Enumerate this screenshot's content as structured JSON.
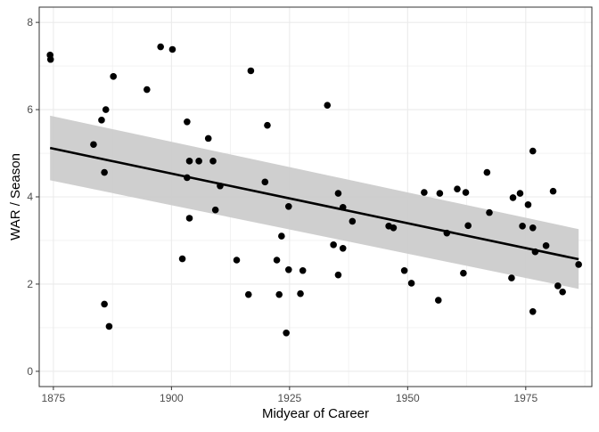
{
  "chart_data": {
    "type": "scatter",
    "title": "",
    "xlabel": "Midyear of Career",
    "ylabel": "WAR / Season",
    "xlim": [
      1872,
      1989
    ],
    "ylim": [
      -0.35,
      8.35
    ],
    "x_ticks": [
      1875,
      1900,
      1925,
      1950,
      1975
    ],
    "y_ticks": [
      0,
      2,
      4,
      6,
      8
    ],
    "grid": true,
    "colors": {
      "points": "#000000",
      "band": "#cccccc",
      "line": "#000000",
      "panel_border": "#333333",
      "grid": "#ebebeb"
    },
    "points": [
      {
        "x": 1874.3,
        "y": 7.25
      },
      {
        "x": 1874.4,
        "y": 7.15
      },
      {
        "x": 1883.5,
        "y": 5.2
      },
      {
        "x": 1885.2,
        "y": 5.76
      },
      {
        "x": 1886.1,
        "y": 6.0
      },
      {
        "x": 1885.8,
        "y": 4.56
      },
      {
        "x": 1885.8,
        "y": 1.54
      },
      {
        "x": 1886.8,
        "y": 1.03
      },
      {
        "x": 1887.7,
        "y": 6.76
      },
      {
        "x": 1894.8,
        "y": 6.46
      },
      {
        "x": 1897.7,
        "y": 7.44
      },
      {
        "x": 1900.2,
        "y": 7.38
      },
      {
        "x": 1902.3,
        "y": 2.58
      },
      {
        "x": 1903.3,
        "y": 5.72
      },
      {
        "x": 1903.3,
        "y": 4.44
      },
      {
        "x": 1903.8,
        "y": 4.82
      },
      {
        "x": 1903.8,
        "y": 3.51
      },
      {
        "x": 1905.8,
        "y": 4.82
      },
      {
        "x": 1907.8,
        "y": 5.34
      },
      {
        "x": 1908.8,
        "y": 4.82
      },
      {
        "x": 1909.3,
        "y": 3.7
      },
      {
        "x": 1910.3,
        "y": 4.25
      },
      {
        "x": 1913.8,
        "y": 2.55
      },
      {
        "x": 1916.3,
        "y": 1.76
      },
      {
        "x": 1916.8,
        "y": 6.89
      },
      {
        "x": 1919.8,
        "y": 4.34
      },
      {
        "x": 1920.3,
        "y": 5.64
      },
      {
        "x": 1922.3,
        "y": 2.55
      },
      {
        "x": 1922.8,
        "y": 1.76
      },
      {
        "x": 1923.3,
        "y": 3.1
      },
      {
        "x": 1924.3,
        "y": 0.88
      },
      {
        "x": 1924.8,
        "y": 2.33
      },
      {
        "x": 1924.8,
        "y": 3.78
      },
      {
        "x": 1927.3,
        "y": 1.78
      },
      {
        "x": 1927.8,
        "y": 2.31
      },
      {
        "x": 1933.0,
        "y": 6.1
      },
      {
        "x": 1934.3,
        "y": 2.9
      },
      {
        "x": 1935.3,
        "y": 4.08
      },
      {
        "x": 1935.3,
        "y": 2.21
      },
      {
        "x": 1936.3,
        "y": 3.76
      },
      {
        "x": 1936.3,
        "y": 2.82
      },
      {
        "x": 1938.3,
        "y": 3.44
      },
      {
        "x": 1946.0,
        "y": 3.33
      },
      {
        "x": 1947.0,
        "y": 3.29
      },
      {
        "x": 1949.3,
        "y": 2.31
      },
      {
        "x": 1950.8,
        "y": 2.02
      },
      {
        "x": 1953.5,
        "y": 4.1
      },
      {
        "x": 1956.5,
        "y": 1.63
      },
      {
        "x": 1956.8,
        "y": 4.08
      },
      {
        "x": 1958.3,
        "y": 3.17
      },
      {
        "x": 1960.5,
        "y": 4.18
      },
      {
        "x": 1961.8,
        "y": 2.25
      },
      {
        "x": 1962.3,
        "y": 4.1
      },
      {
        "x": 1962.8,
        "y": 3.34
      },
      {
        "x": 1966.8,
        "y": 4.56
      },
      {
        "x": 1967.3,
        "y": 3.64
      },
      {
        "x": 1972.0,
        "y": 2.14
      },
      {
        "x": 1972.3,
        "y": 3.98
      },
      {
        "x": 1973.8,
        "y": 4.08
      },
      {
        "x": 1974.3,
        "y": 3.33
      },
      {
        "x": 1975.5,
        "y": 3.82
      },
      {
        "x": 1976.5,
        "y": 5.05
      },
      {
        "x": 1976.5,
        "y": 3.29
      },
      {
        "x": 1976.5,
        "y": 1.37
      },
      {
        "x": 1977.0,
        "y": 2.74
      },
      {
        "x": 1979.3,
        "y": 2.88
      },
      {
        "x": 1980.8,
        "y": 4.13
      },
      {
        "x": 1981.8,
        "y": 1.96
      },
      {
        "x": 1982.8,
        "y": 1.82
      },
      {
        "x": 1986.2,
        "y": 2.45
      }
    ],
    "trend": {
      "x": [
        1874.3,
        1986.2
      ],
      "y": [
        5.12,
        2.57
      ]
    },
    "band": {
      "x": [
        1874.3,
        1986.2
      ],
      "upper": [
        5.86,
        3.26
      ],
      "lower": [
        4.38,
        1.89
      ]
    }
  }
}
